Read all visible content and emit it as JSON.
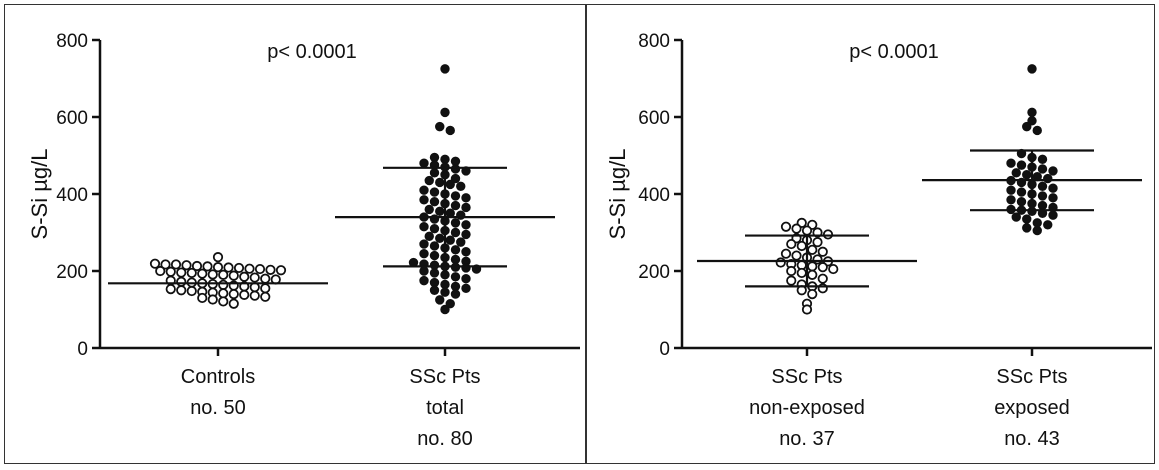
{
  "chart_data": [
    {
      "type": "scatter",
      "subtype": "dot-plot",
      "ylabel": "S-Si µg/L",
      "ylim": [
        0,
        800
      ],
      "yticks": [
        0,
        200,
        400,
        600,
        800
      ],
      "annotation": "p< 0.0001",
      "categories": [
        {
          "label_lines": [
            "Controls",
            "no. 50"
          ],
          "marker": "open",
          "mean": 168,
          "sd_low": 168,
          "sd_high": 168,
          "values": [
            236,
            219,
            217,
            217,
            215,
            213,
            212,
            210,
            209,
            208,
            206,
            205,
            203,
            202,
            200,
            198,
            196,
            195,
            193,
            191,
            190,
            188,
            185,
            183,
            180,
            178,
            175,
            172,
            170,
            168,
            166,
            164,
            162,
            160,
            158,
            155,
            153,
            150,
            148,
            146,
            144,
            142,
            140,
            138,
            136,
            133,
            130,
            126,
            121,
            115
          ]
        },
        {
          "label_lines": [
            "SSc Pts",
            "total",
            "no. 80"
          ],
          "marker": "filled",
          "mean": 340,
          "sd_low": 212,
          "sd_high": 468,
          "values": [
            725,
            612,
            575,
            565,
            495,
            490,
            485,
            480,
            475,
            470,
            465,
            460,
            455,
            450,
            440,
            435,
            430,
            425,
            420,
            410,
            405,
            400,
            395,
            390,
            385,
            380,
            375,
            370,
            365,
            360,
            355,
            350,
            345,
            340,
            335,
            330,
            325,
            320,
            315,
            310,
            305,
            300,
            295,
            290,
            285,
            280,
            275,
            270,
            265,
            260,
            255,
            250,
            245,
            240,
            235,
            230,
            225,
            222,
            218,
            215,
            212,
            210,
            208,
            205,
            200,
            195,
            190,
            185,
            180,
            175,
            170,
            165,
            160,
            155,
            150,
            145,
            140,
            125,
            115,
            100
          ]
        }
      ]
    },
    {
      "type": "scatter",
      "subtype": "dot-plot",
      "ylabel": "S-Si µg/L",
      "ylim": [
        0,
        800
      ],
      "yticks": [
        0,
        200,
        400,
        600,
        800
      ],
      "annotation": "p< 0.0001",
      "categories": [
        {
          "label_lines": [
            "SSc Pts",
            "non-exposed",
            "no. 37"
          ],
          "marker": "open",
          "mean": 226,
          "sd_low": 160,
          "sd_high": 292,
          "values": [
            325,
            320,
            315,
            310,
            305,
            300,
            295,
            285,
            280,
            275,
            270,
            265,
            255,
            250,
            245,
            240,
            235,
            230,
            225,
            222,
            218,
            215,
            212,
            210,
            205,
            200,
            195,
            190,
            180,
            175,
            165,
            160,
            155,
            150,
            140,
            115,
            100
          ]
        },
        {
          "label_lines": [
            "SSc Pts",
            "exposed",
            "no. 43"
          ],
          "marker": "filled",
          "mean": 436,
          "sd_low": 358,
          "sd_high": 513,
          "values": [
            725,
            612,
            590,
            575,
            565,
            505,
            495,
            490,
            480,
            475,
            470,
            465,
            460,
            455,
            450,
            445,
            440,
            435,
            430,
            425,
            420,
            415,
            410,
            405,
            400,
            395,
            390,
            385,
            380,
            375,
            370,
            365,
            360,
            358,
            355,
            350,
            345,
            340,
            335,
            325,
            320,
            312,
            305
          ]
        }
      ]
    }
  ]
}
